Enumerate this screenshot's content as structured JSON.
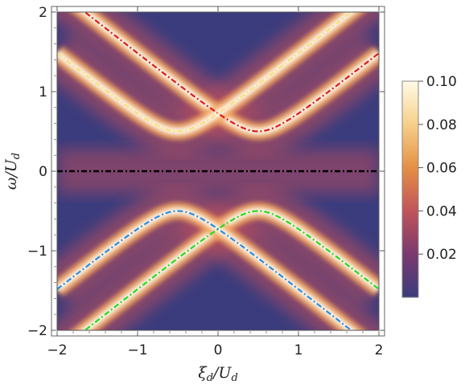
{
  "chart_data": {
    "type": "heatmap",
    "title": "",
    "xlabel": "ξ_d/U_d",
    "ylabel": "ω/U_d",
    "xlim": [
      -2,
      2
    ],
    "ylim": [
      -2,
      2
    ],
    "x_ticks": [
      "−2",
      "−1",
      "0",
      "1",
      "2"
    ],
    "y_ticks": [
      "−2",
      "−1",
      "0",
      "1",
      "2"
    ],
    "colorbar": {
      "range": [
        0,
        0.1
      ],
      "ticks": [
        "0.02",
        "0.04",
        "0.06",
        "0.08",
        "0.10"
      ],
      "colors": [
        "#3b3c7d",
        "#7a3a6e",
        "#c0545a",
        "#e58f45",
        "#f6d08a",
        "#fffbe6"
      ]
    },
    "bands": [
      {
        "branch": "upper",
        "vertex": [
          0.5,
          0.5
        ],
        "color": "#dd1a1a"
      },
      {
        "branch": "upper",
        "vertex": [
          -0.5,
          0.5
        ],
        "color": "#f7e27a"
      },
      {
        "branch": "lower",
        "vertex": [
          0.5,
          -0.5
        ],
        "color": "#22dd22"
      },
      {
        "branch": "lower",
        "vertex": [
          -0.5,
          -0.5
        ],
        "color": "#2a8de0"
      }
    ],
    "zero_line": {
      "y": 0,
      "color": "#000000"
    }
  }
}
